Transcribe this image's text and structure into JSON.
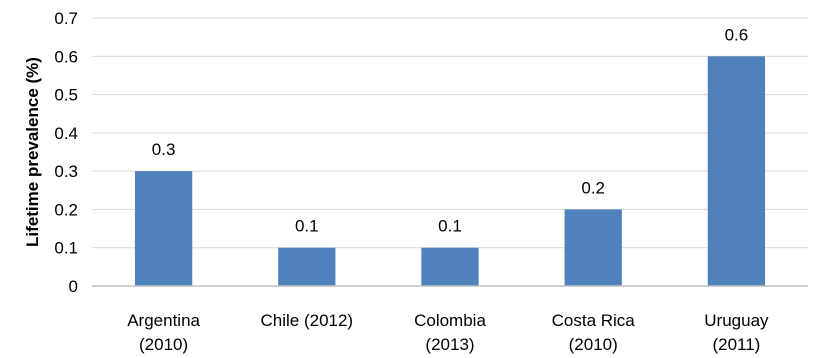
{
  "chart_data": {
    "type": "bar",
    "title": "",
    "xlabel": "",
    "ylabel": "Lifetime prevalence (%)",
    "categories": [
      [
        "Argentina",
        "(2010)"
      ],
      [
        "Chile (2012)"
      ],
      [
        "Colombia",
        "(2013)"
      ],
      [
        "Costa Rica",
        "(2010)"
      ],
      [
        "Uruguay",
        "(2011)"
      ]
    ],
    "values": [
      0.3,
      0.1,
      0.1,
      0.2,
      0.6
    ],
    "data_labels": [
      "0.3",
      "0.1",
      "0.1",
      "0.2",
      "0.6"
    ],
    "ylim": [
      0,
      0.7
    ],
    "yticks": [
      "0",
      "0.1",
      "0.2",
      "0.3",
      "0.4",
      "0.5",
      "0.6",
      "0.7"
    ],
    "grid": true,
    "legend": "none",
    "bar_color": "#4F81BD",
    "grid_color": "#D9D9D9",
    "axis_color": "#BFBFBF"
  }
}
